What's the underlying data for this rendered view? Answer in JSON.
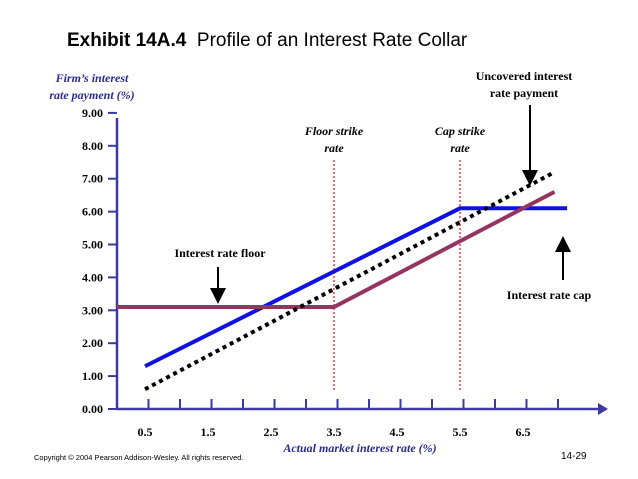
{
  "title": {
    "exhibit": "Exhibit 14A.4",
    "text": "Profile of an Interest Rate Collar"
  },
  "footer": {
    "copyright": "Copyright © 2004 Pearson Addison-Wesley. All rights reserved.",
    "page": "14-29"
  },
  "colors": {
    "blue_line": "#1010e0",
    "collar_line": "#943560",
    "uncovered_line": "#000000",
    "strike_line": "#e02020",
    "axis": "#3a3aa0",
    "label_text": "#2a2a90"
  },
  "chart_data": {
    "type": "line",
    "ylabel_lines": [
      "Firm’s interest",
      "rate payment (%)"
    ],
    "xlabel": "Actual market interest rate (%)",
    "y_ticks": [
      "0.00",
      "1.00",
      "2.00",
      "3.00",
      "4.00",
      "5.00",
      "6.00",
      "7.00",
      "8.00",
      "9.00"
    ],
    "x_ticks": [
      "0.5",
      "1.5",
      "2.5",
      "3.5",
      "4.5",
      "5.5",
      "6.5"
    ],
    "xlim": [
      0,
      7.5
    ],
    "ylim": [
      0,
      9
    ],
    "series": [
      {
        "key": "blue",
        "style": "solid",
        "points": [
          [
            0.5,
            1.3
          ],
          [
            5.5,
            6.1
          ],
          [
            7.2,
            6.1
          ]
        ]
      },
      {
        "key": "collar",
        "style": "solid",
        "points": [
          [
            0.0,
            3.1
          ],
          [
            3.5,
            3.1
          ],
          [
            7.0,
            6.6
          ]
        ]
      },
      {
        "key": "uncovered",
        "style": "dotted",
        "points": [
          [
            0.5,
            0.6
          ],
          [
            7.0,
            7.2
          ]
        ]
      }
    ],
    "strike_lines": [
      {
        "x": 3.5,
        "label_lines": [
          "Floor strike",
          "rate"
        ]
      },
      {
        "x": 5.5,
        "label_lines": [
          "Cap strike",
          "rate"
        ]
      }
    ],
    "annotations": {
      "floor": "Interest rate floor",
      "cap": "Interest rate cap",
      "uncovered_lines": [
        "Uncovered interest",
        "rate payment"
      ]
    }
  }
}
